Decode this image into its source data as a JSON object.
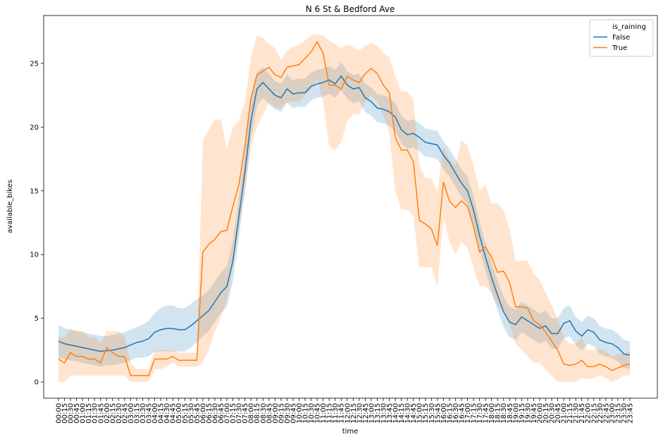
{
  "chart_data": {
    "type": "line",
    "title": "N 6 St & Bedford Ave",
    "xlabel": "time",
    "ylabel": "available_bikes",
    "legend_title": "is_raining",
    "legend": "upper right",
    "categories": [
      "00:00",
      "00:15",
      "00:30",
      "00:45",
      "01:00",
      "01:15",
      "01:30",
      "01:45",
      "02:00",
      "02:15",
      "02:30",
      "02:45",
      "03:00",
      "03:15",
      "03:30",
      "03:45",
      "04:00",
      "04:15",
      "04:30",
      "04:45",
      "05:00",
      "05:15",
      "05:30",
      "05:45",
      "06:00",
      "06:15",
      "06:30",
      "06:45",
      "07:00",
      "07:15",
      "07:30",
      "07:45",
      "08:00",
      "08:15",
      "08:30",
      "08:45",
      "09:00",
      "09:15",
      "09:30",
      "09:45",
      "10:00",
      "10:15",
      "10:30",
      "10:45",
      "11:00",
      "11:15",
      "11:30",
      "11:45",
      "12:00",
      "12:15",
      "12:30",
      "12:45",
      "13:00",
      "13:15",
      "13:30",
      "13:45",
      "14:00",
      "14:15",
      "14:30",
      "14:45",
      "15:00",
      "15:15",
      "15:30",
      "15:45",
      "16:00",
      "16:15",
      "16:30",
      "16:45",
      "17:00",
      "17:15",
      "17:30",
      "17:45",
      "18:00",
      "18:15",
      "18:30",
      "18:45",
      "19:00",
      "19:15",
      "19:30",
      "19:45",
      "20:00",
      "20:15",
      "20:30",
      "20:45",
      "21:00",
      "21:15",
      "21:30",
      "21:45",
      "22:00",
      "22:15",
      "22:30",
      "22:45",
      "23:00",
      "23:15",
      "23:30",
      "23:45"
    ],
    "ylim": [
      -1.27,
      28.76
    ],
    "yticks": [
      0,
      5,
      10,
      15,
      20,
      25
    ],
    "series": [
      {
        "name": "False",
        "color": "#1f77b4",
        "values": [
          3.2,
          3.0,
          2.9,
          2.8,
          2.7,
          2.6,
          2.5,
          2.4,
          2.45,
          2.5,
          2.6,
          2.7,
          2.9,
          3.1,
          3.2,
          3.4,
          3.9,
          4.1,
          4.2,
          4.2,
          4.1,
          4.1,
          4.4,
          4.8,
          5.2,
          5.6,
          6.3,
          7.0,
          7.5,
          9.5,
          13,
          16.5,
          20.5,
          23,
          23.5,
          23,
          22.5,
          22.3,
          23,
          22.6,
          22.7,
          22.7,
          23.2,
          23.4,
          23.5,
          23.7,
          23.4,
          24.0,
          23.3,
          23.0,
          23.1,
          22.3,
          22.0,
          21.5,
          21.4,
          21.2,
          20.8,
          19.8,
          19.4,
          19.5,
          19.2,
          18.8,
          18.7,
          18.6,
          17.8,
          17.2,
          16.4,
          15.6,
          15.0,
          13.5,
          11.5,
          9.8,
          8.2,
          6.8,
          5.5,
          4.7,
          4.5,
          5.1,
          4.8,
          4.5,
          4.2,
          4.4,
          3.8,
          3.8,
          4.6,
          4.8,
          4.0,
          3.6,
          4.1,
          3.9,
          3.3,
          3.1,
          3.0,
          2.7,
          2.2,
          2.1
        ],
        "upper": [
          4.5,
          4.2,
          4.1,
          4.0,
          3.9,
          3.8,
          3.7,
          3.6,
          3.6,
          3.7,
          3.8,
          3.9,
          4.1,
          4.3,
          4.5,
          4.8,
          5.4,
          5.8,
          6.0,
          6.0,
          5.8,
          5.8,
          6.1,
          6.5,
          6.8,
          7.2,
          7.9,
          8.6,
          9.1,
          11.1,
          14.6,
          18.0,
          22.0,
          24.3,
          24.7,
          24.2,
          23.6,
          23.4,
          24.1,
          23.7,
          23.8,
          23.8,
          24.3,
          24.5,
          24.6,
          24.8,
          24.5,
          25.1,
          24.4,
          24.1,
          24.2,
          23.4,
          23.1,
          22.6,
          22.5,
          22.3,
          21.9,
          20.9,
          20.5,
          20.6,
          20.3,
          19.9,
          19.8,
          19.7,
          18.9,
          18.3,
          17.5,
          16.7,
          16.1,
          14.6,
          12.6,
          10.9,
          9.4,
          8.0,
          6.7,
          5.9,
          5.7,
          6.3,
          6.0,
          5.7,
          5.4,
          5.6,
          5.0,
          5.0,
          5.8,
          6.0,
          5.1,
          4.7,
          5.2,
          5.0,
          4.4,
          4.2,
          4.1,
          3.8,
          3.3,
          3.2
        ],
        "lower": [
          1.9,
          1.8,
          1.7,
          1.6,
          1.5,
          1.4,
          1.3,
          1.2,
          1.3,
          1.3,
          1.4,
          1.5,
          1.7,
          1.9,
          1.9,
          2.0,
          2.4,
          2.4,
          2.4,
          2.4,
          2.4,
          2.4,
          2.7,
          3.1,
          3.6,
          4.0,
          4.7,
          5.4,
          5.9,
          7.9,
          11.4,
          15.0,
          19.0,
          21.7,
          22.3,
          21.8,
          21.4,
          21.2,
          21.9,
          21.5,
          21.6,
          21.6,
          22.1,
          22.3,
          22.4,
          22.6,
          22.3,
          22.9,
          22.2,
          21.9,
          22.0,
          21.2,
          20.9,
          20.4,
          20.3,
          20.1,
          19.7,
          18.7,
          18.3,
          18.4,
          18.1,
          17.7,
          17.6,
          17.5,
          16.7,
          16.1,
          15.3,
          14.5,
          13.9,
          12.4,
          10.4,
          8.7,
          7.0,
          5.6,
          4.3,
          3.5,
          3.3,
          3.9,
          3.6,
          3.3,
          3.0,
          3.2,
          2.6,
          2.6,
          3.4,
          3.6,
          2.9,
          2.5,
          3.0,
          2.8,
          2.2,
          2.0,
          1.9,
          1.6,
          1.1,
          1.0
        ]
      },
      {
        "name": "True",
        "color": "#ff7f0e",
        "values": [
          1.8,
          1.5,
          2.3,
          2.0,
          2.0,
          1.8,
          1.8,
          1.5,
          2.7,
          2.3,
          2.0,
          2.0,
          0.5,
          0.5,
          0.5,
          0.5,
          1.8,
          1.8,
          1.8,
          2.0,
          1.7,
          1.7,
          1.7,
          1.7,
          10.2,
          10.8,
          11.2,
          11.8,
          11.9,
          13.8,
          15.5,
          18.5,
          22.3,
          24.1,
          24.4,
          24.7,
          24.1,
          23.9,
          24.7,
          24.8,
          24.9,
          25.4,
          25.9,
          26.7,
          25.8,
          23.3,
          23.3,
          23.0,
          24.0,
          23.7,
          23.5,
          24.2,
          24.6,
          24.2,
          23.3,
          22.7,
          19.2,
          18.2,
          18.2,
          17.3,
          12.7,
          12.4,
          12.0,
          10.7,
          15.7,
          14.2,
          13.7,
          14.2,
          13.8,
          12.2,
          10.2,
          10.6,
          9.8,
          8.6,
          8.7,
          7.8,
          5.9,
          5.9,
          5.8,
          4.8,
          4.5,
          3.9,
          3.2,
          2.5,
          1.4,
          1.3,
          1.4,
          1.7,
          1.2,
          1.2,
          1.4,
          1.2,
          0.9,
          1.1,
          1.3,
          1.4
        ],
        "upper": [
          3.5,
          3.5,
          4.2,
          4.0,
          4.0,
          3.5,
          3.5,
          3.0,
          4.0,
          4.0,
          4.0,
          3.5,
          1.5,
          1.0,
          1.0,
          1.0,
          2.5,
          2.5,
          2.5,
          2.5,
          2.3,
          2.3,
          2.3,
          2.3,
          19,
          19.8,
          20.6,
          20.6,
          18.3,
          20,
          20.5,
          22,
          25.5,
          27.2,
          27,
          26.5,
          26.2,
          25.3,
          26,
          26.3,
          26.5,
          26.8,
          27.2,
          27.3,
          27.2,
          26.8,
          26.5,
          26.2,
          26.5,
          26.3,
          26,
          26.4,
          26.6,
          26.4,
          25.8,
          25.5,
          24,
          22.8,
          22.8,
          22.2,
          17,
          16,
          16,
          15,
          18.5,
          17.5,
          17,
          19,
          18.5,
          17,
          15,
          15.5,
          14,
          14,
          13.5,
          12,
          9.5,
          9.5,
          9.5,
          8.5,
          8,
          7,
          6,
          5,
          3.5,
          3,
          3,
          3.5,
          2.5,
          2.5,
          2.6,
          2.4,
          2,
          2.2,
          2.2,
          2.4
        ],
        "lower": [
          0,
          0,
          0.5,
          0.5,
          0.5,
          0.5,
          0.5,
          0.5,
          0.5,
          0.5,
          0.5,
          0.5,
          0,
          0,
          0,
          0,
          1.0,
          1.0,
          1.2,
          1.5,
          1.2,
          1.2,
          1.2,
          1.2,
          1.5,
          2.5,
          4,
          5,
          6.5,
          9,
          12,
          15,
          18.5,
          20,
          21,
          22,
          21.5,
          21.5,
          22,
          22,
          22,
          22.5,
          23,
          23.8,
          22,
          18.5,
          18.2,
          18.8,
          20.5,
          21,
          21,
          22,
          22.5,
          22,
          21,
          19.5,
          15,
          13.5,
          13.5,
          13,
          9,
          9,
          9,
          7.5,
          13,
          11,
          10,
          11,
          10.5,
          9,
          7.5,
          7.5,
          7,
          6,
          5.5,
          4.5,
          3,
          2.5,
          2,
          1.5,
          1.5,
          1,
          0.5,
          0,
          0,
          0,
          0,
          0.3,
          0.2,
          0.3,
          0.5,
          0.3,
          0,
          0.2,
          0.5,
          0.5
        ]
      }
    ]
  }
}
